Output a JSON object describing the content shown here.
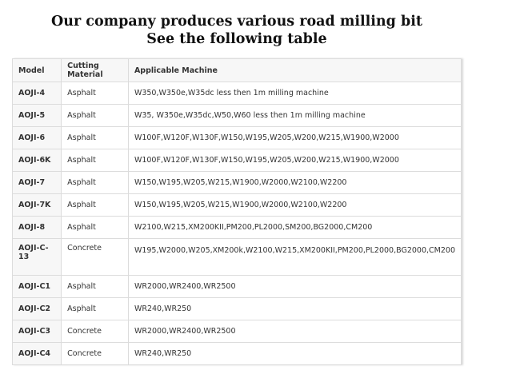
{
  "header": {
    "title": [
      "Our company produces various road milling bit",
      "See the following table"
    ]
  },
  "table": {
    "columns": [
      "Model",
      "Cutting Material",
      "Applicable Machine"
    ],
    "rows": [
      [
        "AOJI-4",
        "Asphalt",
        "W350,W350e,W35dc less then 1m milling machine"
      ],
      [
        "AOJI-5",
        "Asphalt",
        "W35, W350e,W35dc,W50,W60 less then 1m milling machine"
      ],
      [
        "AOJI-6",
        "Asphalt",
        "W100F,W120F,W130F,W150,W195,W205,W200,W215,W1900,W2000"
      ],
      [
        "AOJI-6K",
        "Asphalt",
        "W100F,W120F,W130F,W150,W195,W205,W200,W215,W1900,W2000"
      ],
      [
        "AOJI-7",
        "Asphalt",
        "W150,W195,W205,W215,W1900,W2000,W2100,W2200"
      ],
      [
        "AOJI-7K",
        "Asphalt",
        "W150,W195,W205,W215,W1900,W2000,W2100,W2200"
      ],
      [
        "AOJI-8",
        "Asphalt",
        "W2100,W215,XM200KII,PM200,PL2000,SM200,BG2000,CM200"
      ],
      [
        "AOJI-C-13",
        "Concrete",
        "W195,W2000,W205,XM200k,W2100,W215,XM200KII,PM200,PL2000,BG2000,CM200"
      ],
      [
        "AOJI-C1",
        "Asphalt",
        "WR2000,WR2400,WR2500"
      ],
      [
        "AOJI-C2",
        "Asphalt",
        "WR240,WR250"
      ],
      [
        "AOJI-C3",
        "Concrete",
        "WR2000,WR2400,WR2500"
      ],
      [
        "AOJI-C4",
        "Concrete",
        "WR240,WR250"
      ]
    ]
  }
}
